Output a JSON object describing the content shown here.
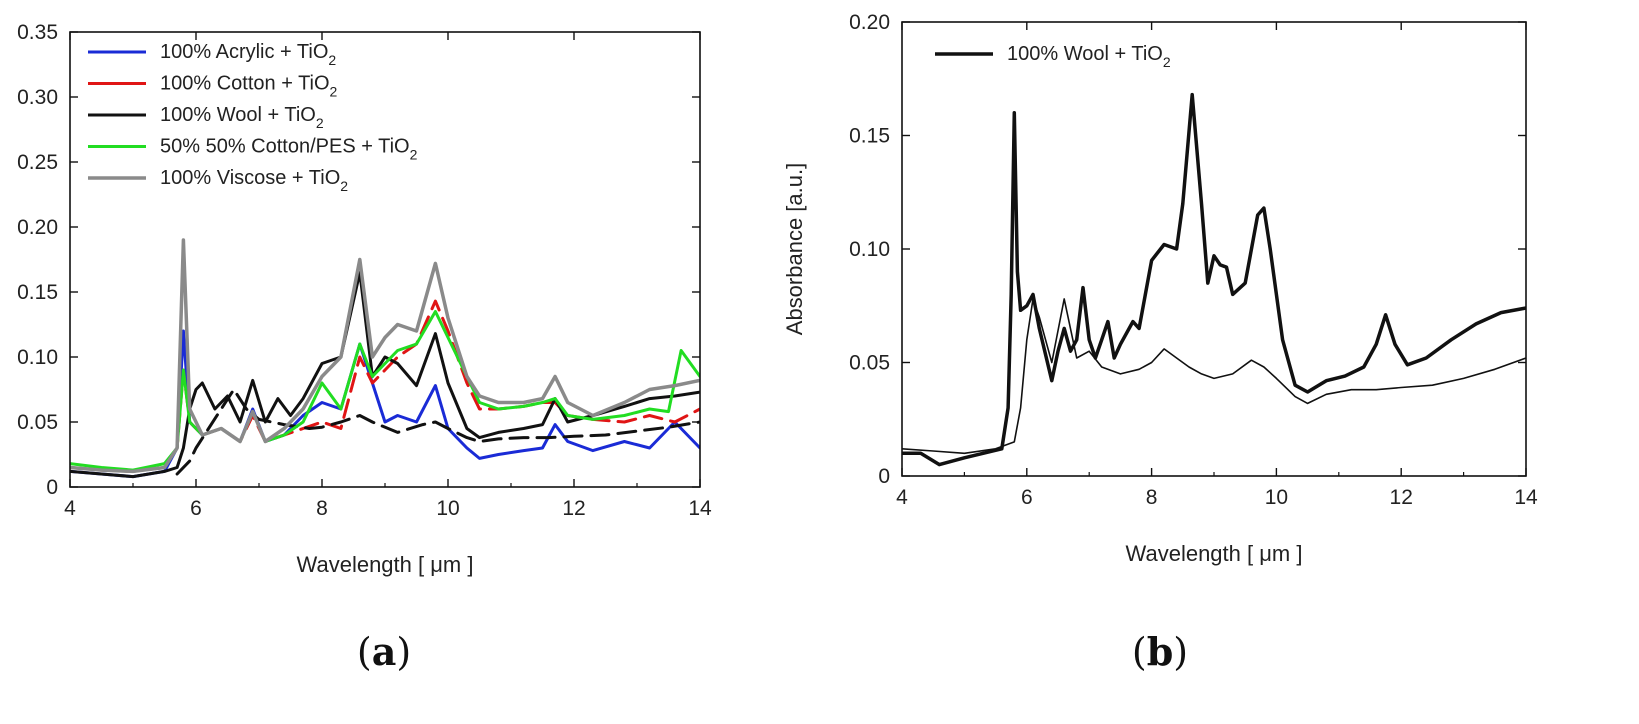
{
  "chart_data": [
    {
      "type": "line",
      "panel_label_open": "(",
      "panel_label_letter": "a",
      "panel_label_close": ")",
      "xlabel": "Wavelength [ μm ]",
      "ylabel": "",
      "xlim": [
        4,
        14
      ],
      "ylim": [
        0,
        0.35
      ],
      "xticks": [
        "4",
        "6",
        "8",
        "10",
        "12",
        "14"
      ],
      "yticks": [
        "0",
        "0.05",
        "0.10",
        "0.15",
        "0.20",
        "0.25",
        "0.30",
        "0.35"
      ],
      "legend_position": "top-left",
      "series": [
        {
          "name": "100% Acrylic + TiO",
          "name_sub": "2",
          "color": "#1a2bd6",
          "style": "solid",
          "width": 3,
          "x": [
            4.0,
            4.5,
            5.0,
            5.5,
            5.7,
            5.8,
            5.9,
            6.1,
            6.4,
            6.7,
            6.9,
            7.1,
            7.4,
            7.7,
            8.0,
            8.3,
            8.6,
            8.8,
            9.0,
            9.2,
            9.5,
            9.8,
            10.0,
            10.3,
            10.5,
            10.8,
            11.2,
            11.5,
            11.7,
            11.9,
            12.3,
            12.8,
            13.2,
            13.6,
            14.0
          ],
          "y": [
            0.012,
            0.01,
            0.008,
            0.012,
            0.03,
            0.12,
            0.05,
            0.04,
            0.045,
            0.035,
            0.06,
            0.035,
            0.04,
            0.055,
            0.065,
            0.06,
            0.11,
            0.08,
            0.05,
            0.055,
            0.05,
            0.078,
            0.045,
            0.03,
            0.022,
            0.025,
            0.028,
            0.03,
            0.048,
            0.035,
            0.028,
            0.035,
            0.03,
            0.05,
            0.03
          ]
        },
        {
          "name": "100% Cotton + TiO",
          "name_sub": "2",
          "color": "#e01515",
          "style": "dashed",
          "width": 3,
          "x": [
            4.0,
            4.5,
            5.0,
            5.5,
            5.7,
            5.8,
            5.9,
            6.1,
            6.4,
            6.7,
            6.9,
            7.1,
            7.4,
            7.7,
            8.0,
            8.3,
            8.6,
            8.8,
            9.0,
            9.2,
            9.5,
            9.8,
            10.0,
            10.3,
            10.5,
            10.8,
            11.2,
            11.5,
            11.7,
            11.9,
            12.3,
            12.8,
            13.2,
            13.6,
            14.0
          ],
          "y": [
            0.015,
            0.013,
            0.012,
            0.015,
            0.03,
            0.09,
            0.05,
            0.04,
            0.045,
            0.035,
            0.055,
            0.035,
            0.04,
            0.045,
            0.05,
            0.045,
            0.1,
            0.08,
            0.09,
            0.1,
            0.11,
            0.143,
            0.12,
            0.08,
            0.06,
            0.06,
            0.062,
            0.065,
            0.065,
            0.055,
            0.052,
            0.05,
            0.055,
            0.05,
            0.06
          ]
        },
        {
          "name": "100% Wool + TiO",
          "name_sub": "2",
          "color": "#111111",
          "style": "solid",
          "width": 3,
          "x": [
            4.0,
            4.5,
            5.0,
            5.5,
            5.7,
            5.8,
            5.9,
            6.0,
            6.1,
            6.3,
            6.5,
            6.7,
            6.9,
            7.1,
            7.3,
            7.5,
            7.7,
            8.0,
            8.3,
            8.6,
            8.8,
            9.0,
            9.2,
            9.5,
            9.8,
            10.0,
            10.3,
            10.5,
            10.8,
            11.2,
            11.5,
            11.7,
            11.9,
            12.3,
            12.8,
            13.2,
            13.6,
            14.0
          ],
          "y": [
            0.012,
            0.01,
            0.008,
            0.012,
            0.015,
            0.03,
            0.06,
            0.075,
            0.08,
            0.06,
            0.07,
            0.05,
            0.082,
            0.05,
            0.068,
            0.055,
            0.068,
            0.095,
            0.1,
            0.165,
            0.085,
            0.1,
            0.095,
            0.078,
            0.118,
            0.08,
            0.045,
            0.038,
            0.042,
            0.045,
            0.048,
            0.068,
            0.05,
            0.055,
            0.062,
            0.068,
            0.07,
            0.073
          ]
        },
        {
          "name": "",
          "color": "#111111",
          "style": "dashed",
          "width": 3,
          "x": [
            5.7,
            5.9,
            6.0,
            6.2,
            6.4,
            6.6,
            6.8,
            7.0,
            7.4,
            7.8,
            8.0,
            8.3,
            8.6,
            8.8,
            9.2,
            9.6,
            9.8,
            10.0,
            10.3,
            10.5,
            10.8,
            11.2,
            11.6,
            12.0,
            12.5,
            13.0,
            13.5,
            14.0
          ],
          "y": [
            0.01,
            0.02,
            0.03,
            0.045,
            0.06,
            0.075,
            0.06,
            0.052,
            0.048,
            0.045,
            0.046,
            0.05,
            0.055,
            0.05,
            0.042,
            0.048,
            0.05,
            0.045,
            0.038,
            0.035,
            0.037,
            0.038,
            0.038,
            0.039,
            0.04,
            0.043,
            0.046,
            0.05
          ]
        },
        {
          "name": "50% 50% Cotton/PES + TiO",
          "name_sub": "2",
          "color": "#22dd22",
          "style": "solid",
          "width": 3,
          "x": [
            4.0,
            4.5,
            5.0,
            5.5,
            5.7,
            5.8,
            5.9,
            6.1,
            6.4,
            6.7,
            6.9,
            7.1,
            7.4,
            7.7,
            8.0,
            8.3,
            8.6,
            8.8,
            9.0,
            9.2,
            9.5,
            9.8,
            10.0,
            10.3,
            10.5,
            10.8,
            11.2,
            11.5,
            11.7,
            11.9,
            12.3,
            12.8,
            13.2,
            13.5,
            13.7,
            14.0
          ],
          "y": [
            0.018,
            0.015,
            0.013,
            0.018,
            0.03,
            0.09,
            0.05,
            0.04,
            0.045,
            0.035,
            0.058,
            0.035,
            0.04,
            0.05,
            0.08,
            0.06,
            0.11,
            0.085,
            0.095,
            0.105,
            0.11,
            0.135,
            0.115,
            0.085,
            0.065,
            0.06,
            0.062,
            0.065,
            0.068,
            0.055,
            0.052,
            0.055,
            0.06,
            0.058,
            0.105,
            0.085
          ]
        },
        {
          "name": "100% Viscose + TiO",
          "name_sub": "2",
          "color": "#8a8a8a",
          "style": "solid",
          "width": 3.5,
          "x": [
            4.0,
            4.5,
            5.0,
            5.5,
            5.7,
            5.8,
            5.9,
            6.1,
            6.4,
            6.7,
            6.9,
            7.1,
            7.4,
            7.7,
            8.0,
            8.3,
            8.6,
            8.8,
            9.0,
            9.2,
            9.5,
            9.8,
            10.0,
            10.3,
            10.5,
            10.8,
            11.2,
            11.5,
            11.7,
            11.9,
            12.3,
            12.8,
            13.2,
            13.6,
            14.0
          ],
          "y": [
            0.015,
            0.013,
            0.012,
            0.015,
            0.03,
            0.19,
            0.06,
            0.04,
            0.045,
            0.035,
            0.058,
            0.035,
            0.045,
            0.06,
            0.085,
            0.1,
            0.175,
            0.1,
            0.115,
            0.125,
            0.12,
            0.172,
            0.13,
            0.085,
            0.07,
            0.065,
            0.065,
            0.068,
            0.085,
            0.065,
            0.055,
            0.065,
            0.075,
            0.078,
            0.082
          ]
        }
      ]
    },
    {
      "type": "line",
      "panel_label_open": "(",
      "panel_label_letter": "b",
      "panel_label_close": ")",
      "xlabel": "Wavelength [ μm ]",
      "ylabel": "Absorbance [a.u.]",
      "xlim": [
        4,
        14
      ],
      "ylim": [
        0,
        0.2
      ],
      "xticks": [
        "4",
        "6",
        "8",
        "10",
        "12",
        "14"
      ],
      "yticks": [
        "0",
        "0.05",
        "0.10",
        "0.15",
        "0.20"
      ],
      "legend_position": "top-left",
      "series": [
        {
          "name": "100% Wool + TiO",
          "name_sub": "2",
          "color": "#111111",
          "style": "solid",
          "width": 3.5,
          "x": [
            4.0,
            4.3,
            4.6,
            5.0,
            5.3,
            5.6,
            5.7,
            5.75,
            5.8,
            5.85,
            5.9,
            6.0,
            6.1,
            6.2,
            6.4,
            6.5,
            6.6,
            6.7,
            6.8,
            6.9,
            7.0,
            7.1,
            7.2,
            7.3,
            7.4,
            7.5,
            7.7,
            7.8,
            8.0,
            8.2,
            8.4,
            8.5,
            8.65,
            8.8,
            8.9,
            9.0,
            9.1,
            9.2,
            9.3,
            9.5,
            9.7,
            9.8,
            9.9,
            10.1,
            10.3,
            10.5,
            10.8,
            11.1,
            11.4,
            11.6,
            11.75,
            11.9,
            12.1,
            12.4,
            12.8,
            13.2,
            13.6,
            14.0
          ],
          "y": [
            0.01,
            0.01,
            0.005,
            0.008,
            0.01,
            0.012,
            0.03,
            0.08,
            0.16,
            0.09,
            0.073,
            0.075,
            0.08,
            0.065,
            0.042,
            0.055,
            0.065,
            0.055,
            0.06,
            0.083,
            0.06,
            0.052,
            0.06,
            0.068,
            0.052,
            0.058,
            0.068,
            0.065,
            0.095,
            0.102,
            0.1,
            0.12,
            0.168,
            0.12,
            0.085,
            0.097,
            0.093,
            0.092,
            0.08,
            0.085,
            0.115,
            0.118,
            0.1,
            0.06,
            0.04,
            0.037,
            0.042,
            0.044,
            0.048,
            0.058,
            0.071,
            0.058,
            0.049,
            0.052,
            0.06,
            0.067,
            0.072,
            0.074
          ]
        },
        {
          "name": "",
          "color": "#111111",
          "style": "solid",
          "width": 1.6,
          "x": [
            4.0,
            4.5,
            5.0,
            5.5,
            5.8,
            5.9,
            6.0,
            6.1,
            6.2,
            6.4,
            6.6,
            6.8,
            7.0,
            7.2,
            7.5,
            7.8,
            8.0,
            8.2,
            8.4,
            8.6,
            8.8,
            9.0,
            9.3,
            9.6,
            9.8,
            10.0,
            10.3,
            10.5,
            10.8,
            11.2,
            11.6,
            12.0,
            12.5,
            13.0,
            13.5,
            14.0
          ],
          "y": [
            0.012,
            0.011,
            0.01,
            0.012,
            0.015,
            0.03,
            0.06,
            0.078,
            0.07,
            0.05,
            0.078,
            0.052,
            0.055,
            0.048,
            0.045,
            0.047,
            0.05,
            0.056,
            0.052,
            0.048,
            0.045,
            0.043,
            0.045,
            0.051,
            0.048,
            0.043,
            0.035,
            0.032,
            0.036,
            0.038,
            0.038,
            0.039,
            0.04,
            0.043,
            0.047,
            0.052
          ]
        }
      ]
    }
  ]
}
